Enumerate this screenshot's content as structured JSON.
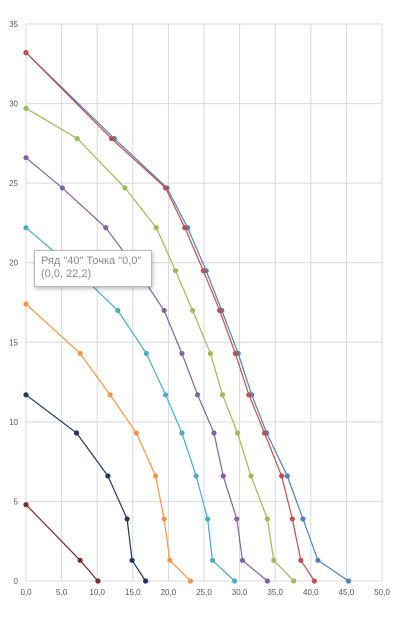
{
  "chart_data": {
    "type": "scatter",
    "title": "",
    "xlabel": "",
    "ylabel": "",
    "xlim": [
      0,
      50
    ],
    "ylim": [
      0,
      35
    ],
    "x_ticks": [
      "0,0",
      "5,0",
      "10,0",
      "15,0",
      "20,0",
      "25,0",
      "30,0",
      "35,0",
      "40,0",
      "45,0",
      "50,0"
    ],
    "y_ticks": [
      "0",
      "5",
      "10",
      "15",
      "20",
      "25",
      "30",
      "35"
    ],
    "grid": true,
    "legend": "none",
    "series": [
      {
        "color": "#4F81BD",
        "points": [
          [
            0.0,
            33.2
          ],
          [
            12.4,
            27.8
          ],
          [
            19.8,
            24.7
          ],
          [
            22.7,
            22.2
          ],
          [
            25.3,
            19.5
          ],
          [
            27.5,
            17.0
          ],
          [
            29.8,
            14.3
          ],
          [
            31.7,
            11.7
          ],
          [
            33.8,
            9.3
          ],
          [
            36.7,
            6.6
          ],
          [
            38.9,
            3.9
          ],
          [
            41.0,
            1.3
          ],
          [
            45.3,
            0.0
          ]
        ]
      },
      {
        "color": "#C0504D",
        "points": [
          [
            0.0,
            33.2
          ],
          [
            12.0,
            27.8
          ],
          [
            19.6,
            24.7
          ],
          [
            22.3,
            22.2
          ],
          [
            24.9,
            19.5
          ],
          [
            27.2,
            17.0
          ],
          [
            29.4,
            14.3
          ],
          [
            31.3,
            11.7
          ],
          [
            33.5,
            9.3
          ],
          [
            35.9,
            6.6
          ],
          [
            37.4,
            3.9
          ],
          [
            38.6,
            1.3
          ],
          [
            40.5,
            0.0
          ]
        ]
      },
      {
        "color": "#9BBB59",
        "points": [
          [
            0.0,
            29.7
          ],
          [
            7.2,
            27.8
          ],
          [
            13.9,
            24.7
          ],
          [
            18.3,
            22.2
          ],
          [
            21.0,
            19.5
          ],
          [
            23.4,
            17.0
          ],
          [
            25.9,
            14.3
          ],
          [
            27.6,
            11.7
          ],
          [
            29.7,
            9.3
          ],
          [
            31.6,
            6.6
          ],
          [
            33.9,
            3.9
          ],
          [
            34.8,
            1.3
          ],
          [
            37.6,
            0.0
          ]
        ]
      },
      {
        "color": "#8064A2",
        "points": [
          [
            0.0,
            26.6
          ],
          [
            5.1,
            24.7
          ],
          [
            11.2,
            22.2
          ],
          [
            15.7,
            19.5
          ],
          [
            19.4,
            17.0
          ],
          [
            21.9,
            14.3
          ],
          [
            24.1,
            11.7
          ],
          [
            26.4,
            9.3
          ],
          [
            27.7,
            6.6
          ],
          [
            29.6,
            3.9
          ],
          [
            30.4,
            1.3
          ],
          [
            33.9,
            0.0
          ]
        ]
      },
      {
        "color": "#4BACC6",
        "points": [
          [
            0.0,
            22.2
          ],
          [
            7.1,
            19.5
          ],
          [
            12.9,
            17.0
          ],
          [
            16.9,
            14.3
          ],
          [
            19.6,
            11.7
          ],
          [
            21.9,
            9.3
          ],
          [
            23.9,
            6.6
          ],
          [
            25.5,
            3.9
          ],
          [
            26.2,
            1.3
          ],
          [
            29.3,
            0.0
          ]
        ]
      },
      {
        "color": "#F79646",
        "points": [
          [
            0.0,
            17.4
          ],
          [
            7.6,
            14.3
          ],
          [
            11.8,
            11.7
          ],
          [
            15.5,
            9.3
          ],
          [
            18.2,
            6.6
          ],
          [
            19.4,
            3.9
          ],
          [
            20.2,
            1.3
          ],
          [
            23.1,
            0.0
          ]
        ]
      },
      {
        "color": "#1F3864",
        "points": [
          [
            0.0,
            11.7
          ],
          [
            7.1,
            9.3
          ],
          [
            11.5,
            6.6
          ],
          [
            14.2,
            3.9
          ],
          [
            14.9,
            1.3
          ],
          [
            16.8,
            0.0
          ]
        ]
      },
      {
        "color": "#7B2C2C",
        "points": [
          [
            0.0,
            4.8
          ],
          [
            7.6,
            1.3
          ],
          [
            10.1,
            0.0
          ]
        ]
      }
    ],
    "tooltip": {
      "line1": "Ряд \"40\" Точка \"0,0\"",
      "line2": "(0,0, 22,2)"
    }
  }
}
